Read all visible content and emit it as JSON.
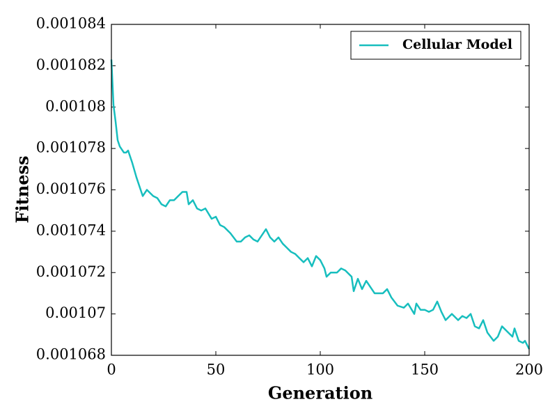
{
  "chart_data": {
    "type": "line",
    "x_label": "Generation",
    "y_label": "Fitness",
    "x": [
      0,
      1,
      2,
      3,
      4,
      6,
      7,
      8,
      10,
      12,
      14,
      15,
      17,
      20,
      22,
      24,
      26,
      28,
      30,
      32,
      34,
      36,
      37,
      39,
      41,
      43,
      45,
      48,
      50,
      52,
      54,
      57,
      60,
      62,
      64,
      66,
      68,
      70,
      72,
      74,
      76,
      78,
      80,
      82,
      84,
      86,
      88,
      90,
      92,
      94,
      96,
      98,
      100,
      102,
      103,
      105,
      108,
      110,
      112,
      115,
      116,
      118,
      120,
      122,
      124,
      126,
      128,
      130,
      132,
      134,
      137,
      140,
      142,
      145,
      146,
      148,
      150,
      152,
      154,
      156,
      158,
      160,
      163,
      166,
      168,
      170,
      172,
      174,
      176,
      178,
      180,
      183,
      185,
      187,
      190,
      192,
      193,
      195,
      197,
      198,
      200
    ],
    "series": [
      {
        "name": "Cellular Model",
        "color": "#17bebe",
        "values": [
          0.0010823,
          0.0010801,
          0.0010793,
          0.0010784,
          0.0010781,
          0.0010778,
          0.0010778,
          0.0010779,
          0.0010773,
          0.0010766,
          0.001076,
          0.0010757,
          0.001076,
          0.0010757,
          0.0010756,
          0.0010753,
          0.0010752,
          0.0010755,
          0.0010755,
          0.0010757,
          0.0010759,
          0.0010759,
          0.0010753,
          0.0010755,
          0.0010751,
          0.001075,
          0.0010751,
          0.0010746,
          0.0010747,
          0.0010743,
          0.0010742,
          0.0010739,
          0.0010735,
          0.0010735,
          0.0010737,
          0.0010738,
          0.0010736,
          0.0010735,
          0.0010738,
          0.0010741,
          0.0010737,
          0.0010735,
          0.0010737,
          0.0010734,
          0.0010732,
          0.001073,
          0.0010729,
          0.0010727,
          0.0010725,
          0.0010727,
          0.0010723,
          0.0010728,
          0.0010726,
          0.0010722,
          0.0010718,
          0.001072,
          0.001072,
          0.0010722,
          0.0010721,
          0.0010718,
          0.0010711,
          0.0010717,
          0.0010712,
          0.0010716,
          0.0010713,
          0.001071,
          0.001071,
          0.001071,
          0.0010712,
          0.0010708,
          0.0010704,
          0.0010703,
          0.0010705,
          0.00107,
          0.0010705,
          0.0010702,
          0.0010702,
          0.0010701,
          0.0010702,
          0.0010706,
          0.0010701,
          0.0010697,
          0.00107,
          0.0010697,
          0.0010699,
          0.0010698,
          0.00107,
          0.0010694,
          0.0010693,
          0.0010697,
          0.0010691,
          0.0010687,
          0.0010689,
          0.0010694,
          0.0010691,
          0.0010689,
          0.0010693,
          0.0010687,
          0.0010686,
          0.0010687,
          0.0010683
        ]
      }
    ],
    "xlim": [
      0,
      200
    ],
    "xticks": [
      0,
      50,
      100,
      150,
      200
    ],
    "ylim": [
      0.001068,
      0.001084
    ],
    "yticks": [
      0.001068,
      0.00107,
      0.001072,
      0.001074,
      0.001076,
      0.001078,
      0.00108,
      0.001082,
      0.001084
    ],
    "legend": "upper right",
    "grid": false
  }
}
